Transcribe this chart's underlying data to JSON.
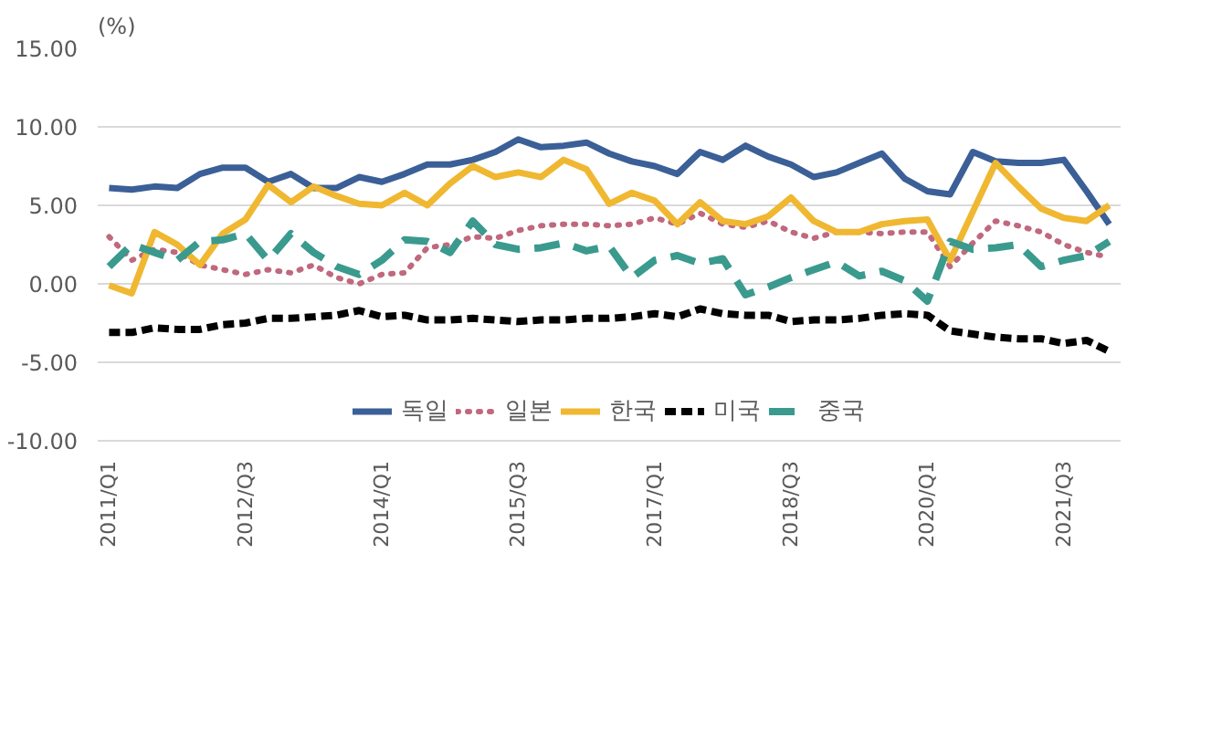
{
  "chart_data": {
    "type": "line",
    "ylabel": "(%)",
    "categories": [
      "2011/Q1",
      null,
      null,
      null,
      null,
      null,
      "2012/Q3",
      null,
      null,
      null,
      null,
      null,
      "2014/Q1",
      null,
      null,
      null,
      null,
      null,
      "2015/Q3",
      null,
      null,
      null,
      null,
      null,
      "2017/Q1",
      null,
      null,
      null,
      null,
      null,
      "2018/Q3",
      null,
      null,
      null,
      null,
      null,
      "2020/Q1",
      null,
      null,
      null,
      null,
      null,
      "2021/Q3",
      null,
      null
    ],
    "series": [
      {
        "name": "독일",
        "color": "#3b5f97",
        "line_style": "solid",
        "values": [
          6.1,
          6.0,
          6.2,
          6.1,
          7.0,
          7.4,
          7.4,
          6.5,
          7.0,
          6.1,
          6.1,
          6.8,
          6.5,
          7.0,
          7.6,
          7.6,
          7.9,
          8.4,
          9.2,
          8.7,
          8.8,
          9.0,
          8.3,
          7.8,
          7.5,
          7.0,
          8.4,
          7.9,
          8.8,
          8.1,
          7.6,
          6.8,
          7.1,
          7.7,
          8.3,
          6.7,
          5.9,
          5.7,
          8.4,
          7.8,
          7.7,
          7.7,
          7.9,
          5.9,
          3.8
        ]
      },
      {
        "name": "일본",
        "color": "#c0687e",
        "line_style": "dotted",
        "values": [
          3.0,
          1.5,
          2.2,
          2.0,
          1.2,
          0.9,
          0.6,
          0.9,
          0.7,
          1.2,
          0.4,
          0.0,
          0.6,
          0.7,
          2.3,
          2.5,
          3.0,
          2.9,
          3.4,
          3.7,
          3.8,
          3.8,
          3.7,
          3.8,
          4.2,
          3.8,
          4.5,
          3.8,
          3.6,
          4.0,
          3.3,
          2.9,
          3.3,
          3.3,
          3.2,
          3.3,
          3.3,
          1.1,
          2.6,
          4.0,
          3.7,
          3.3,
          2.5,
          2.0,
          1.7
        ]
      },
      {
        "name": "한국",
        "color": "#f0b731",
        "line_style": "solid",
        "values": [
          -0.1,
          -0.6,
          3.3,
          2.5,
          1.2,
          3.2,
          4.1,
          6.3,
          5.2,
          6.2,
          5.6,
          5.1,
          5.0,
          5.8,
          5.0,
          6.4,
          7.5,
          6.8,
          7.1,
          6.8,
          7.9,
          7.3,
          5.1,
          5.8,
          5.3,
          3.8,
          5.2,
          4.0,
          3.8,
          4.3,
          5.5,
          4.0,
          3.3,
          3.3,
          3.8,
          4.0,
          4.1,
          1.5,
          4.6,
          7.7,
          6.2,
          4.8,
          4.2,
          4.0,
          5.0
        ]
      },
      {
        "name": "미국",
        "color": "#000000",
        "line_style": "dashed",
        "values": [
          -3.1,
          -3.1,
          -2.8,
          -2.9,
          -2.9,
          -2.6,
          -2.5,
          -2.2,
          -2.2,
          -2.1,
          -2.0,
          -1.7,
          -2.1,
          -2.0,
          -2.3,
          -2.3,
          -2.2,
          -2.3,
          -2.4,
          -2.3,
          -2.3,
          -2.2,
          -2.2,
          -2.1,
          -1.9,
          -2.1,
          -1.6,
          -1.9,
          -2.0,
          -2.0,
          -2.4,
          -2.3,
          -2.3,
          -2.2,
          -2.0,
          -1.9,
          -2.0,
          -3.0,
          -3.2,
          -3.4,
          -3.5,
          -3.5,
          -3.8,
          -3.6,
          -4.3
        ]
      },
      {
        "name": "중국",
        "color": "#3a9a8e",
        "line_style": "dashed",
        "values": [
          1.1,
          2.5,
          2.0,
          1.5,
          2.7,
          2.8,
          3.2,
          1.5,
          3.2,
          2.0,
          1.1,
          0.6,
          1.5,
          2.8,
          2.7,
          2.0,
          4.0,
          2.5,
          2.2,
          2.3,
          2.6,
          2.1,
          2.4,
          0.4,
          1.5,
          1.8,
          1.3,
          1.6,
          -0.7,
          -0.2,
          0.4,
          0.9,
          1.4,
          0.5,
          0.8,
          0.2,
          -1.1,
          2.7,
          2.2,
          2.3,
          2.5,
          1.1,
          1.5,
          1.8,
          2.7
        ]
      }
    ],
    "ylim": [
      -10,
      15
    ],
    "yticks": [
      {
        "value": -10,
        "label": "-10.00"
      },
      {
        "value": -5,
        "label": "-5.00"
      },
      {
        "value": 0,
        "label": "0.00"
      },
      {
        "value": 5,
        "label": "5.00"
      },
      {
        "value": 10,
        "label": "10.00"
      },
      {
        "value": 15,
        "label": "15.00"
      }
    ],
    "grid": "y",
    "legend": "bottom",
    "marker": "none"
  }
}
